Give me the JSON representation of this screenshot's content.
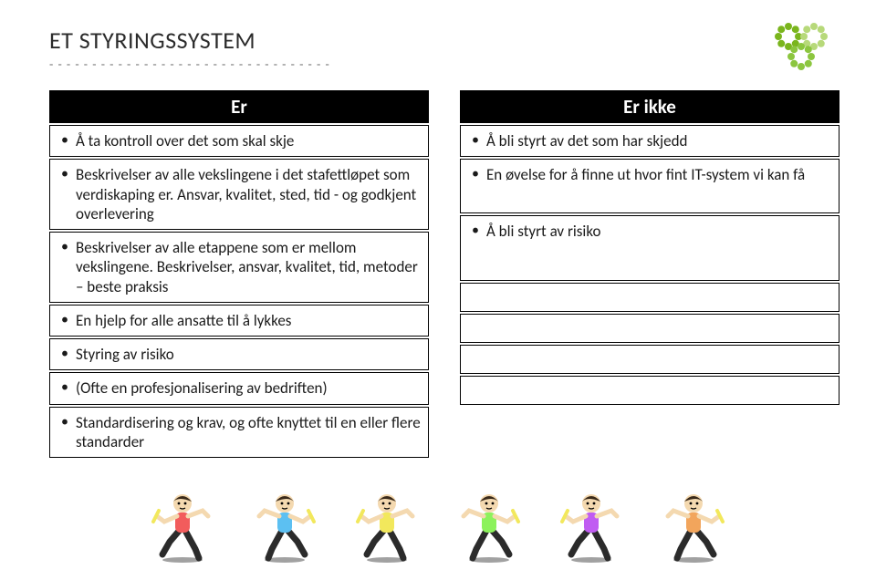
{
  "title": "ET STYRINGSSYSTEM",
  "dots": "- - - - - - - - - - - - - - - - - - - - - - - - - - - - - - - - -",
  "left": {
    "header": "Er",
    "rows": [
      "Å ta kontroll over det som skal skje",
      "Beskrivelser av alle vekslingene i det stafettløpet som verdiskaping er. Ansvar, kvalitet, sted, tid - og godkjent overlevering",
      "Beskrivelser av alle etappene som er mellom vekslingene. Beskrivelser, ansvar, kvalitet, tid, metoder – beste praksis",
      "En hjelp for alle ansatte til å lykkes",
      "Styring av risiko",
      "(Ofte en profesjonalisering av bedriften)",
      "Standardisering og krav, og ofte knyttet til en eller flere standarder"
    ]
  },
  "right": {
    "header": "Er ikke",
    "rows": [
      "Å bli styrt av det som har skjedd",
      "En øvelse for å finne ut hvor fint IT-system vi kan få",
      "Å bli styrt av risiko"
    ],
    "empty_rows": 4
  },
  "logo": {
    "colors": [
      "#7ab51d",
      "#b7d97a",
      "#8cc63f"
    ]
  },
  "runners": {
    "count": 6,
    "skin": "#f4d9b0",
    "hair": "#3a2a1a",
    "shirt_colors": [
      "#f25c5c",
      "#5cc0f2",
      "#f2e85c",
      "#8cf25c",
      "#c05cf2",
      "#f2a55c"
    ],
    "shorts": "#2b2b2b",
    "baton": "#f2e85c",
    "ground": "#444444"
  }
}
